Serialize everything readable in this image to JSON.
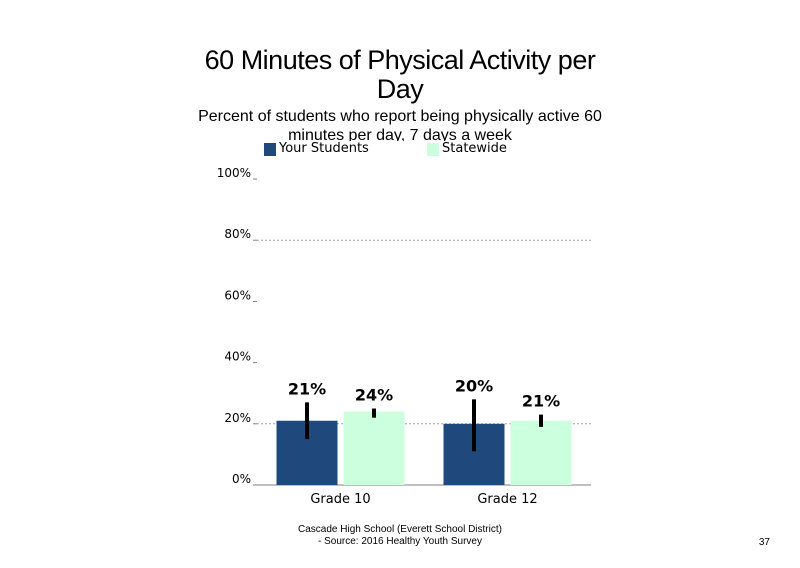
{
  "slide": {
    "page_number": "37",
    "footer_line1": "Cascade High School (Everett School District)",
    "footer_line2": "- Source: 2016 Healthy  Youth Survey"
  },
  "chart_data": {
    "type": "bar",
    "title": "60 Minutes of Physical Activity per Day",
    "subtitle": "Percent of students  who report being physically active 60 minutes  per day, 7 days a week",
    "categories": [
      "Grade 10",
      "Grade 12"
    ],
    "series": [
      {
        "name": "Your Students",
        "color": "#1f497d",
        "values": [
          21,
          20
        ],
        "labels": [
          "21%",
          "20%"
        ],
        "error_low": [
          15,
          11
        ],
        "error_high": [
          27,
          28
        ]
      },
      {
        "name": "Statewide",
        "color": "#ccffdd",
        "values": [
          24,
          21
        ],
        "labels": [
          "24%",
          "21%"
        ],
        "error_low": [
          22,
          19
        ],
        "error_high": [
          25,
          23
        ]
      }
    ],
    "ylim": [
      0,
      100
    ],
    "yticks": [
      0,
      20,
      40,
      60,
      80,
      100
    ],
    "ytick_labels": [
      "0%",
      "20%",
      "40%",
      "60%",
      "80%",
      "100%"
    ],
    "gridlines": [
      20,
      80
    ],
    "legend_position": "top"
  }
}
